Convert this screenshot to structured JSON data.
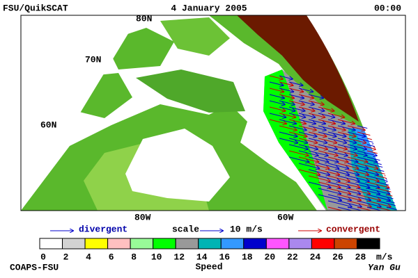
{
  "header": {
    "left": "FSU/QuikSCAT",
    "date": "4 January 2005",
    "time": "00:00"
  },
  "map": {
    "lat_labels": [
      "80N",
      "70N",
      "60N"
    ],
    "lon_labels": [
      "80W",
      "60W"
    ]
  },
  "legend": {
    "divergent": "divergent",
    "scale": "scale",
    "scale_value": "10 m/s",
    "convergent": "convergent"
  },
  "colorbar": {
    "colors": [
      "#ffffff",
      "#d3d3d3",
      "#ffff00",
      "#ffc0c0",
      "#98fb98",
      "#00ff00",
      "#999999",
      "#00b4b4",
      "#3399ff",
      "#0000cc",
      "#ff55ff",
      "#aa88ee",
      "#ff0000",
      "#cc4400",
      "#000000"
    ],
    "ticks": [
      0,
      2,
      4,
      6,
      8,
      10,
      12,
      14,
      16,
      18,
      20,
      22,
      24,
      26,
      28
    ],
    "unit": "m/s",
    "label": "Speed"
  },
  "footer": {
    "left": "COAPS-FSU",
    "signature": "Yan Gu"
  }
}
